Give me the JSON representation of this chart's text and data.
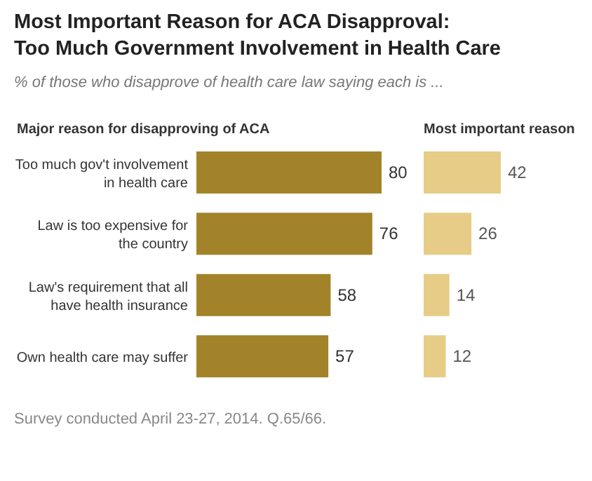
{
  "chart_data": [
    {
      "type": "bar",
      "orientation": "horizontal",
      "title": "Most Important Reason for ACA Disapproval: Too Much Government Involvement in Health Care",
      "subtitle": "% of those who disapprove of health care law saying each is ...",
      "xlabel": "Major reason for disapproving of ACA",
      "categories": [
        "Too much gov't involvement in health care",
        "Law is too expensive for the country",
        "Law's requirement that all have health insurance",
        "Own health care may suffer"
      ],
      "values": [
        80,
        76,
        58,
        57
      ],
      "color": "#a3832a",
      "data_labels": true,
      "annotations": [
        "Survey conducted April 23-27, 2014. Q.65/66."
      ]
    },
    {
      "type": "bar",
      "orientation": "horizontal",
      "xlabel": "Most important reason",
      "categories": [
        null,
        null,
        null,
        null
      ],
      "values": [
        42,
        26,
        14,
        12
      ],
      "color": "#e6cc86",
      "data_labels": true
    }
  ]
}
